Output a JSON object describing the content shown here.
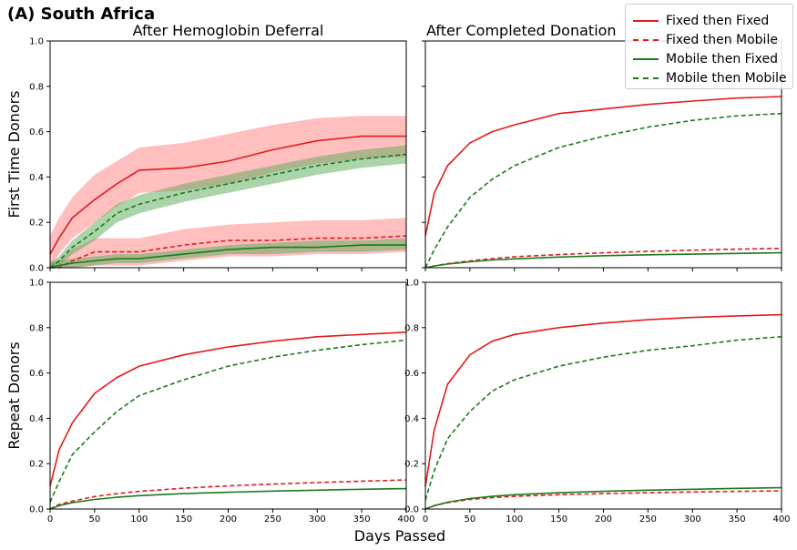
{
  "figure": {
    "suptitle": "(A) South Africa",
    "col_titles": [
      "After Hemoglobin Deferral",
      "After Completed Donation"
    ],
    "row_labels": [
      "First Time Donors",
      "Repeat Donors"
    ],
    "xlabel": "Days Passed",
    "colors": {
      "red": "#e41a1c",
      "green": "#1b7a1b",
      "red_band": "#ff8080",
      "green_band": "#57a957"
    }
  },
  "legend": {
    "placement": "top-right",
    "items": [
      {
        "label": "Fixed then Fixed",
        "color": "#e41a1c",
        "dash": "solid"
      },
      {
        "label": "Fixed then Mobile",
        "color": "#e41a1c",
        "dash": "dashed"
      },
      {
        "label": "Mobile then Fixed",
        "color": "#1b7a1b",
        "dash": "solid"
      },
      {
        "label": "Mobile then Mobile",
        "color": "#1b7a1b",
        "dash": "dashed"
      }
    ]
  },
  "chart_data": [
    {
      "type": "line",
      "title": "After Hemoglobin Deferral",
      "ylabel": "First Time Donors",
      "xlim": [
        0,
        400
      ],
      "ylim": [
        0,
        1.0
      ],
      "xticks": [
        0,
        50,
        100,
        150,
        200,
        250,
        300,
        350,
        400
      ],
      "yticks": [
        0.0,
        0.2,
        0.4,
        0.6,
        0.8,
        1.0
      ],
      "x": [
        0,
        10,
        25,
        50,
        75,
        100,
        150,
        200,
        250,
        300,
        350,
        400
      ],
      "series": [
        {
          "name": "Fixed then Fixed",
          "values": [
            0.06,
            0.13,
            0.22,
            0.3,
            0.37,
            0.43,
            0.44,
            0.47,
            0.52,
            0.56,
            0.58,
            0.58
          ],
          "band_lower": [
            0.0,
            0.06,
            0.13,
            0.2,
            0.27,
            0.33,
            0.34,
            0.37,
            0.42,
            0.46,
            0.48,
            0.49
          ],
          "band_upper": [
            0.14,
            0.22,
            0.31,
            0.41,
            0.47,
            0.53,
            0.55,
            0.59,
            0.63,
            0.66,
            0.67,
            0.67
          ]
        },
        {
          "name": "Fixed then Mobile",
          "values": [
            0.0,
            0.0,
            0.03,
            0.07,
            0.07,
            0.07,
            0.1,
            0.12,
            0.12,
            0.13,
            0.13,
            0.14
          ],
          "band_lower": [
            0.0,
            0.0,
            0.0,
            0.01,
            0.01,
            0.01,
            0.03,
            0.05,
            0.05,
            0.06,
            0.06,
            0.07
          ],
          "band_upper": [
            0.03,
            0.03,
            0.08,
            0.13,
            0.13,
            0.13,
            0.17,
            0.19,
            0.2,
            0.21,
            0.21,
            0.22
          ]
        },
        {
          "name": "Mobile then Fixed",
          "values": [
            0.0,
            0.01,
            0.02,
            0.03,
            0.04,
            0.04,
            0.06,
            0.08,
            0.09,
            0.09,
            0.1,
            0.1
          ],
          "band_lower": [
            0.0,
            0.0,
            0.0,
            0.01,
            0.02,
            0.02,
            0.04,
            0.06,
            0.06,
            0.07,
            0.07,
            0.08
          ],
          "band_upper": [
            0.02,
            0.03,
            0.04,
            0.05,
            0.06,
            0.06,
            0.08,
            0.1,
            0.11,
            0.12,
            0.12,
            0.13
          ]
        },
        {
          "name": "Mobile then Mobile",
          "values": [
            0.0,
            0.03,
            0.09,
            0.16,
            0.24,
            0.28,
            0.33,
            0.37,
            0.41,
            0.45,
            0.48,
            0.5
          ],
          "band_lower": [
            0.0,
            0.01,
            0.06,
            0.12,
            0.2,
            0.24,
            0.29,
            0.33,
            0.37,
            0.41,
            0.44,
            0.46
          ],
          "band_upper": [
            0.02,
            0.05,
            0.12,
            0.2,
            0.28,
            0.32,
            0.37,
            0.41,
            0.45,
            0.49,
            0.52,
            0.54
          ]
        }
      ]
    },
    {
      "type": "line",
      "title": "After Completed Donation",
      "ylabel": "",
      "xlim": [
        0,
        400
      ],
      "ylim": [
        0,
        1.0
      ],
      "xticks": [
        0,
        50,
        100,
        150,
        200,
        250,
        300,
        350,
        400
      ],
      "yticks": [
        0.0,
        0.2,
        0.4,
        0.6,
        0.8,
        1.0
      ],
      "x": [
        0,
        10,
        25,
        50,
        75,
        100,
        150,
        200,
        250,
        300,
        350,
        400
      ],
      "series": [
        {
          "name": "Fixed then Fixed",
          "values": [
            0.14,
            0.33,
            0.45,
            0.55,
            0.6,
            0.63,
            0.68,
            0.7,
            0.72,
            0.735,
            0.748,
            0.755
          ]
        },
        {
          "name": "Fixed then Mobile",
          "values": [
            0.0,
            0.008,
            0.018,
            0.03,
            0.04,
            0.048,
            0.058,
            0.066,
            0.072,
            0.077,
            0.082,
            0.085
          ]
        },
        {
          "name": "Mobile then Fixed",
          "values": [
            0.0,
            0.008,
            0.016,
            0.026,
            0.034,
            0.039,
            0.047,
            0.053,
            0.057,
            0.06,
            0.063,
            0.066
          ]
        },
        {
          "name": "Mobile then Mobile",
          "values": [
            0.0,
            0.08,
            0.18,
            0.31,
            0.39,
            0.45,
            0.53,
            0.58,
            0.62,
            0.65,
            0.67,
            0.68
          ]
        }
      ]
    },
    {
      "type": "line",
      "title": "",
      "ylabel": "Repeat Donors",
      "xlim": [
        0,
        400
      ],
      "ylim": [
        0,
        1.0
      ],
      "xticks": [
        0,
        50,
        100,
        150,
        200,
        250,
        300,
        350,
        400
      ],
      "yticks": [
        0.0,
        0.2,
        0.4,
        0.6,
        0.8,
        1.0
      ],
      "x": [
        0,
        10,
        25,
        50,
        75,
        100,
        150,
        200,
        250,
        300,
        350,
        400
      ],
      "series": [
        {
          "name": "Fixed then Fixed",
          "values": [
            0.1,
            0.26,
            0.38,
            0.51,
            0.58,
            0.63,
            0.68,
            0.715,
            0.74,
            0.76,
            0.77,
            0.78
          ]
        },
        {
          "name": "Fixed then Mobile",
          "values": [
            0.0,
            0.02,
            0.035,
            0.055,
            0.068,
            0.078,
            0.092,
            0.102,
            0.11,
            0.117,
            0.123,
            0.128
          ]
        },
        {
          "name": "Mobile then Fixed",
          "values": [
            0.0,
            0.015,
            0.028,
            0.042,
            0.052,
            0.059,
            0.068,
            0.074,
            0.079,
            0.083,
            0.087,
            0.09
          ]
        },
        {
          "name": "Mobile then Mobile",
          "values": [
            0.03,
            0.12,
            0.24,
            0.34,
            0.43,
            0.5,
            0.57,
            0.63,
            0.67,
            0.7,
            0.725,
            0.745
          ]
        }
      ]
    },
    {
      "type": "line",
      "title": "",
      "ylabel": "",
      "xlim": [
        0,
        400
      ],
      "ylim": [
        0,
        1.0
      ],
      "xticks": [
        0,
        50,
        100,
        150,
        200,
        250,
        300,
        350,
        400
      ],
      "yticks": [
        0.0,
        0.2,
        0.4,
        0.6,
        0.8,
        1.0
      ],
      "x": [
        0,
        10,
        25,
        50,
        75,
        100,
        150,
        200,
        250,
        300,
        350,
        400
      ],
      "series": [
        {
          "name": "Fixed then Fixed",
          "values": [
            0.1,
            0.35,
            0.55,
            0.68,
            0.74,
            0.77,
            0.8,
            0.82,
            0.835,
            0.845,
            0.852,
            0.857
          ]
        },
        {
          "name": "Fixed then Mobile",
          "values": [
            0.0,
            0.015,
            0.028,
            0.042,
            0.05,
            0.056,
            0.063,
            0.068,
            0.072,
            0.075,
            0.078,
            0.08
          ]
        },
        {
          "name": "Mobile then Fixed",
          "values": [
            0.0,
            0.015,
            0.03,
            0.046,
            0.056,
            0.063,
            0.072,
            0.078,
            0.083,
            0.087,
            0.091,
            0.094
          ]
        },
        {
          "name": "Mobile then Mobile",
          "values": [
            0.04,
            0.17,
            0.31,
            0.43,
            0.52,
            0.57,
            0.63,
            0.67,
            0.7,
            0.72,
            0.745,
            0.76
          ]
        }
      ]
    }
  ]
}
